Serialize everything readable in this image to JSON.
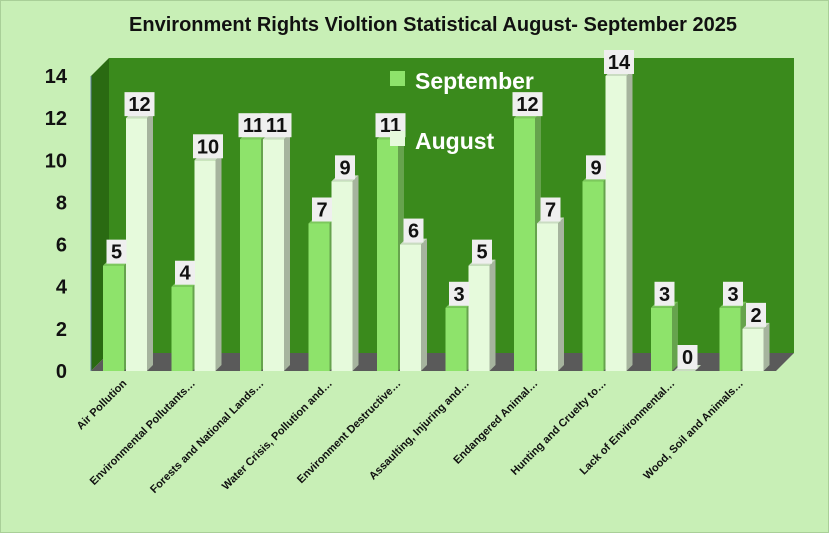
{
  "chart_data": {
    "type": "bar",
    "title": "Environment Rights Violtion Statistical August- September 2025",
    "categories": [
      "Air Pollution",
      "Environmental Pollutants…",
      "Forests and National Lands…",
      "Water Crisis, Pollution and…",
      "Environment Destructive…",
      "Assaulting, Injuring and…",
      "Endangered Animal…",
      "Hunting and Cruelty to…",
      "Lack of Environmental…",
      "Wood, Soil and Animals…"
    ],
    "series": [
      {
        "name": "September",
        "values": [
          5,
          4,
          11,
          7,
          11,
          3,
          12,
          9,
          3,
          3
        ],
        "color": "#8ee36b"
      },
      {
        "name": "August",
        "values": [
          12,
          10,
          11,
          9,
          6,
          5,
          7,
          14,
          0,
          2
        ],
        "color": "#e6fadc"
      }
    ],
    "ylim": [
      0,
      14
    ],
    "yticks": [
      "0",
      "2",
      "4",
      "6",
      "8",
      "10",
      "12",
      "14"
    ],
    "grid": false,
    "legend_position": "top-center",
    "colors": {
      "background": "#c8efb6",
      "plot_back_wall": "#3a8a1c",
      "floor": "#5a5a5a",
      "label_box": "#efefef"
    }
  }
}
